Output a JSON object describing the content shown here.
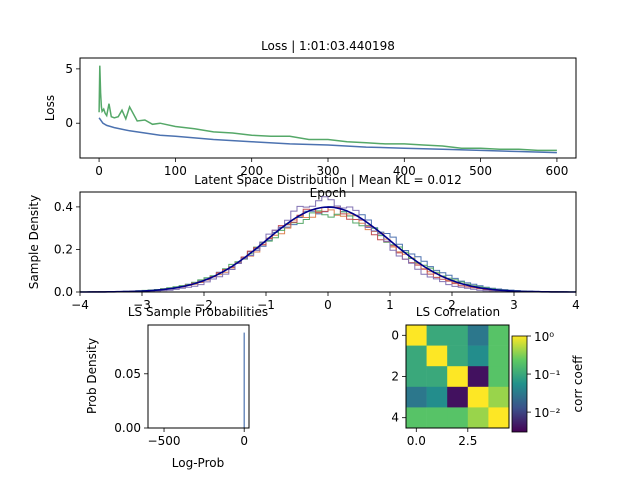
{
  "chart_data": [
    {
      "type": "line",
      "title": "Loss | 1:01:03.440198",
      "xlabel": "Epoch",
      "ylabel": "Loss",
      "xlim": [
        -25,
        625
      ],
      "ylim": [
        -3.2,
        6.0
      ],
      "xticks": [
        0,
        100,
        200,
        300,
        400,
        500,
        600
      ],
      "yticks": [
        0,
        5
      ],
      "series": [
        {
          "color": "#55a868",
          "x": [
            0,
            1,
            2,
            3,
            4,
            6,
            8,
            10,
            13,
            16,
            20,
            25,
            30,
            35,
            40,
            50,
            60,
            70,
            80,
            100,
            125,
            150,
            175,
            200,
            225,
            250,
            275,
            300,
            325,
            350,
            375,
            400,
            425,
            450,
            475,
            500,
            525,
            550,
            575,
            600
          ],
          "y": [
            1.0,
            5.3,
            2.8,
            1.5,
            1.1,
            1.3,
            0.9,
            0.7,
            1.8,
            0.6,
            0.5,
            0.6,
            1.2,
            0.4,
            1.5,
            0.2,
            0.3,
            -0.1,
            0.0,
            -0.3,
            -0.5,
            -0.8,
            -0.9,
            -1.1,
            -1.2,
            -1.2,
            -1.5,
            -1.5,
            -1.7,
            -1.8,
            -1.9,
            -1.9,
            -2.0,
            -2.1,
            -2.3,
            -2.3,
            -2.4,
            -2.4,
            -2.5,
            -2.5
          ]
        },
        {
          "color": "#4c72b0",
          "x": [
            0,
            5,
            10,
            20,
            40,
            60,
            80,
            100,
            150,
            200,
            250,
            300,
            350,
            400,
            450,
            500,
            550,
            600
          ],
          "y": [
            0.5,
            0.0,
            -0.2,
            -0.4,
            -0.7,
            -0.9,
            -1.1,
            -1.2,
            -1.5,
            -1.7,
            -1.9,
            -2.0,
            -2.2,
            -2.3,
            -2.4,
            -2.5,
            -2.6,
            -2.7
          ]
        }
      ]
    },
    {
      "type": "line",
      "title": "Latent Space Distribution | Mean KL = 0.012",
      "xlabel": "",
      "ylabel": "Sample Density",
      "xlim": [
        -4,
        4
      ],
      "ylim": [
        0,
        0.47
      ],
      "xticks": [
        -4,
        -3,
        -2,
        -1,
        0,
        1,
        2,
        3,
        4
      ],
      "yticks": [
        0.0,
        0.2,
        0.4
      ],
      "series": [
        {
          "color": "#4c72b0",
          "mu": 0.05,
          "sigma": 1.05,
          "amp": 0.39
        },
        {
          "color": "#dd8452",
          "mu": 0.0,
          "sigma": 1.0,
          "amp": 0.38
        },
        {
          "color": "#55a868",
          "mu": 0.0,
          "sigma": 1.05,
          "amp": 0.37
        },
        {
          "color": "#c44e52",
          "mu": -0.05,
          "sigma": 0.98,
          "amp": 0.39
        },
        {
          "color": "#8172b3",
          "mu": -0.05,
          "sigma": 0.9,
          "amp": 0.43
        }
      ],
      "reference": {
        "color": "#00008b",
        "mu": 0,
        "sigma": 1,
        "amp": 0.399
      }
    },
    {
      "type": "bar",
      "title": "LS Sample Probabilities",
      "xlabel": "Log-Prob",
      "ylabel": "Prob Density",
      "xlim": [
        -600,
        30
      ],
      "ylim": [
        0,
        0.095
      ],
      "xticks": [
        -500,
        0
      ],
      "yticks": [
        0.0,
        0.05
      ],
      "spike": {
        "x": 0,
        "value": 0.088,
        "color": "#4c72b0"
      }
    },
    {
      "type": "heatmap",
      "title": "LS Correlation",
      "xticks": [
        0.0,
        2.5
      ],
      "yticks": [
        0,
        2,
        4
      ],
      "matrix": [
        [
          1.0,
          0.1,
          0.1,
          0.03,
          0.2
        ],
        [
          0.1,
          1.0,
          0.1,
          0.05,
          0.2
        ],
        [
          0.1,
          0.1,
          1.0,
          0.004,
          0.2
        ],
        [
          0.03,
          0.05,
          0.004,
          1.0,
          0.4
        ],
        [
          0.2,
          0.2,
          0.2,
          0.4,
          1.0
        ]
      ],
      "colorbar": {
        "label": "corr coeff",
        "ticks": [
          "10⁰",
          "10⁻¹",
          "10⁻²"
        ],
        "vmin": 0.003,
        "vmax": 1.0
      }
    }
  ]
}
